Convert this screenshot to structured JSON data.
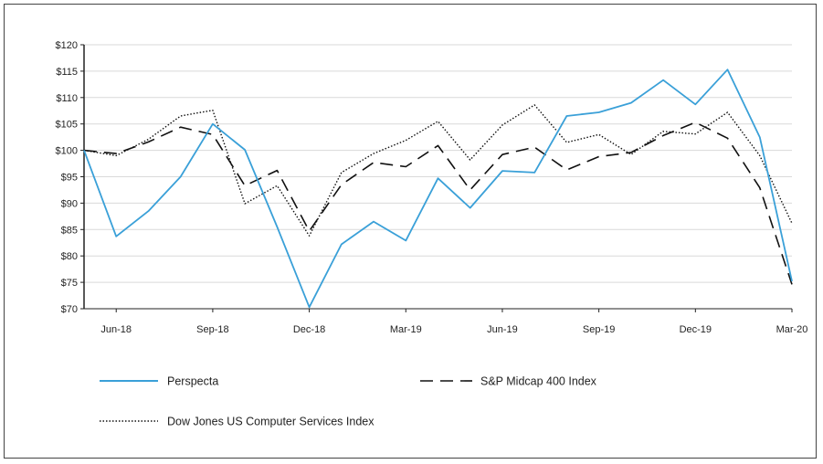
{
  "chart_data": {
    "type": "line",
    "title": "",
    "xlabel": "",
    "ylabel": "",
    "ylim": [
      70,
      120
    ],
    "y_ticks": [
      "$120",
      "$115",
      "$110",
      "$105",
      "$100",
      "$95",
      "$90",
      "$85",
      "$80",
      "$75",
      "$70"
    ],
    "y_tick_values": [
      120,
      115,
      110,
      105,
      100,
      95,
      90,
      85,
      80,
      75,
      70
    ],
    "x_tick_labels": [
      "Jun-18",
      "Sep-18",
      "Dec-18",
      "Mar-19",
      "Jun-19",
      "Sep-19",
      "Dec-19",
      "Mar-20"
    ],
    "x_tick_indices": [
      1,
      4,
      7,
      10,
      13,
      16,
      19,
      22
    ],
    "x": [
      "May-18",
      "Jun-18",
      "Jul-18",
      "Aug-18",
      "Sep-18",
      "Oct-18",
      "Nov-18",
      "Dec-18",
      "Jan-19",
      "Feb-19",
      "Mar-19",
      "Apr-19",
      "May-19",
      "Jun-19",
      "Jul-19",
      "Aug-19",
      "Sep-19",
      "Oct-19",
      "Nov-19",
      "Dec-19",
      "Jan-20",
      "Feb-20",
      "Mar-20"
    ],
    "grid": true,
    "legend_position": "bottom",
    "series": [
      {
        "name": "Perspecta",
        "color": "#3aa0d8",
        "style": "solid",
        "values": [
          100,
          83.7,
          88.5,
          95,
          105,
          100.1,
          85.5,
          70.3,
          82.2,
          86.5,
          82.9,
          94.7,
          89.1,
          96.1,
          95.8,
          106.5,
          107.2,
          109,
          113.3,
          108.7,
          115.3,
          102.5,
          75.2
        ]
      },
      {
        "name": "S&P Midcap 400 Index",
        "color": "#111111",
        "style": "dashed",
        "values": [
          100,
          99.4,
          101.6,
          104.4,
          103,
          93.3,
          96.2,
          84.7,
          93.5,
          97.7,
          96.9,
          100.9,
          92.5,
          99.2,
          100.6,
          96.3,
          98.8,
          99.6,
          102.8,
          105.3,
          102.3,
          92.9,
          74.6
        ]
      },
      {
        "name": "Dow Jones US Computer Services Index",
        "color": "#111111",
        "style": "dotted",
        "values": [
          100,
          99,
          102.1,
          106.5,
          107.6,
          89.9,
          93.3,
          83.8,
          95.8,
          99.4,
          101.9,
          105.5,
          98.2,
          104.8,
          108.6,
          101.5,
          103,
          99.2,
          103.6,
          103.1,
          107.2,
          99,
          86.2
        ]
      }
    ]
  }
}
